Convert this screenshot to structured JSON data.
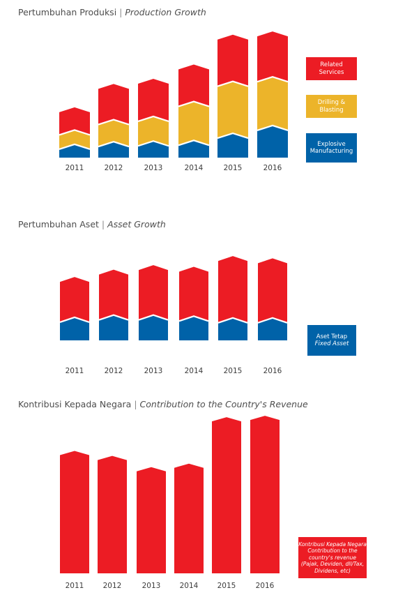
{
  "colors": {
    "red": "#ec1c24",
    "yellow": "#ecb42a",
    "blue": "#0062a8",
    "title": "#4d4d4d",
    "axis_label": "#3c3c3c"
  },
  "chart_data": [
    {
      "id": "production",
      "type": "bar",
      "stacked": true,
      "title": "Pertumbuhan Produksi",
      "title_en": "Production Growth",
      "categories": [
        "2011",
        "2012",
        "2013",
        "2014",
        "2015",
        "2016"
      ],
      "series": [
        {
          "name": "Explosive Manufacturing",
          "color": "#0062a8",
          "values": [
            13,
            17,
            18,
            19,
            30,
            42
          ]
        },
        {
          "name": "Drilling & Blasting",
          "color": "#ecb42a",
          "values": [
            22,
            34,
            38,
            60,
            80,
            75
          ]
        },
        {
          "name": "Related Services",
          "color": "#ec1c24",
          "values": [
            35,
            55,
            58,
            57,
            72,
            70
          ]
        }
      ],
      "legend": [
        {
          "lines": [
            "Related",
            "Services"
          ],
          "color": "#ec1c24"
        },
        {
          "lines": [
            "Drilling &",
            "Blasting"
          ],
          "color": "#ecb42a"
        },
        {
          "lines": [
            "Explosive",
            "Manufacturing"
          ],
          "color": "#0062a8"
        }
      ],
      "legend_position": "right",
      "grid": false,
      "ylim": [
        0,
        200
      ]
    },
    {
      "id": "assets",
      "type": "bar",
      "stacked": true,
      "title": "Pertumbuhan Aset",
      "title_en": "Asset Growth",
      "categories": [
        "2011",
        "2012",
        "2013",
        "2014",
        "2015",
        "2016"
      ],
      "series": [
        {
          "name": "Aset Tetap",
          "color": "#0062a8",
          "values": [
            32,
            36,
            36,
            34,
            31,
            31
          ]
        },
        {
          "name": "",
          "color": "#ec1c24",
          "values": [
            71,
            80,
            88,
            87,
            109,
            105
          ]
        }
      ],
      "legend": [
        {
          "lines": [
            "Aset Tetap",
            "Fixed Asset"
          ],
          "italic_lines": [
            1
          ],
          "color": "#0062a8"
        }
      ],
      "legend_position": "right",
      "grid": false,
      "ylim": [
        0,
        145
      ]
    },
    {
      "id": "contribution",
      "type": "bar",
      "stacked": false,
      "title": "Kontribusi Kepada Negara",
      "title_en": "Contribution to the Country's Revenue",
      "categories": [
        "2011",
        "2012",
        "2013",
        "2014",
        "2015",
        "2016"
      ],
      "series": [
        {
          "name": "Kontribusi Kepada Negara",
          "color": "#ec1c24",
          "values": [
            168,
            161,
            145,
            150,
            216,
            218
          ]
        }
      ],
      "legend": [
        {
          "lines": [
            "Kontribusi Kepada Negara",
            "Contribution to the",
            "country's revenue",
            "(Pajak, Deviden, dll/Tax,",
            "Dividens, etc)"
          ],
          "italic_lines": [
            0,
            1,
            2,
            3,
            4
          ],
          "color": "#ec1c24"
        }
      ],
      "legend_position": "right",
      "grid": false,
      "ylim": [
        0,
        230
      ]
    }
  ]
}
